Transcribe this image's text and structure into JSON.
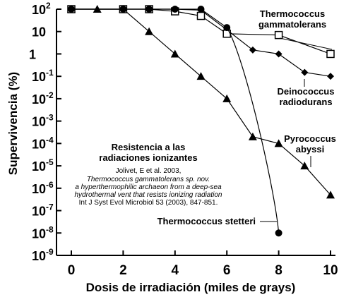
{
  "chart_data": {
    "type": "line",
    "ylabel": "Supervivencia (%)",
    "xlabel": "Dosis de irradiación (miles de grays)",
    "xlim": [
      0,
      10
    ],
    "ylim_log10": [
      -9,
      2
    ],
    "y_scale": "log",
    "x_ticks": [
      "0",
      "2",
      "4",
      "6",
      "8",
      "10"
    ],
    "y_ticks": [
      {
        "base": "10",
        "exp": "2",
        "v": 2
      },
      {
        "base": "10",
        "exp": "",
        "v": 1
      },
      {
        "base": "1",
        "exp": "",
        "v": 0
      },
      {
        "base": "10",
        "exp": "-1",
        "v": -1
      },
      {
        "base": "10",
        "exp": "-2",
        "v": -2
      },
      {
        "base": "10",
        "exp": "-3",
        "v": -3
      },
      {
        "base": "10",
        "exp": "-4",
        "v": -4
      },
      {
        "base": "10",
        "exp": "-5",
        "v": -5
      },
      {
        "base": "10",
        "exp": "-6",
        "v": -6
      },
      {
        "base": "10",
        "exp": "-7",
        "v": -7
      },
      {
        "base": "10",
        "exp": "-8",
        "v": -8
      },
      {
        "base": "10",
        "exp": "-9",
        "v": -9
      }
    ],
    "grid": false,
    "series": [
      {
        "name": "Thermococcus gammatolerans",
        "name_lines": [
          "Thermococcus",
          "gammatolerans"
        ],
        "marker": "square-open",
        "x": [
          0,
          2,
          3,
          4,
          5,
          6,
          8,
          10
        ],
        "y": [
          100,
          100,
          100,
          80,
          50,
          8,
          7,
          1
        ]
      },
      {
        "name": "Deinococcus radiodurans",
        "name_lines": [
          "Deinococcus",
          "radiodurans"
        ],
        "marker": "diamond-filled",
        "x": [
          0,
          2,
          3,
          4,
          5,
          6,
          7,
          8,
          9,
          10
        ],
        "y": [
          100,
          100,
          100,
          100,
          90,
          12,
          1.5,
          1,
          0.15,
          0.1
        ]
      },
      {
        "name": "Pyrococcus abyssi",
        "name_lines": [
          "Pyrococcus",
          "abyssi"
        ],
        "marker": "triangle-filled",
        "x": [
          0,
          1,
          2,
          3,
          4,
          5,
          6,
          7,
          8,
          9,
          10
        ],
        "y": [
          100,
          100,
          100,
          10,
          1,
          0.1,
          0.01,
          0.0002,
          0.0001,
          1e-05,
          5e-07
        ]
      },
      {
        "name": "Thermococcus stetteri",
        "name_lines": [
          "Thermococcus stetteri"
        ],
        "marker": "circle-filled",
        "x": [
          0,
          2,
          3,
          4,
          5,
          6,
          8
        ],
        "y": [
          100,
          100,
          100,
          100,
          100,
          15,
          1e-08
        ]
      }
    ],
    "annotation": {
      "title_lines": [
        "Resistencia a las",
        "radiaciones ionizantes"
      ],
      "ref_author": "Jolivet, E et al. 2003,",
      "ref_title_lines": [
        "Thermococcus gammatolerans sp. nov.",
        "a hyperthermophilic archaeon from a deep-sea",
        "hydrothermal vent that resists ionizing radiation"
      ],
      "ref_journal": "Int J Syst Evol Microbiol 53 (2003), 847-851."
    }
  }
}
